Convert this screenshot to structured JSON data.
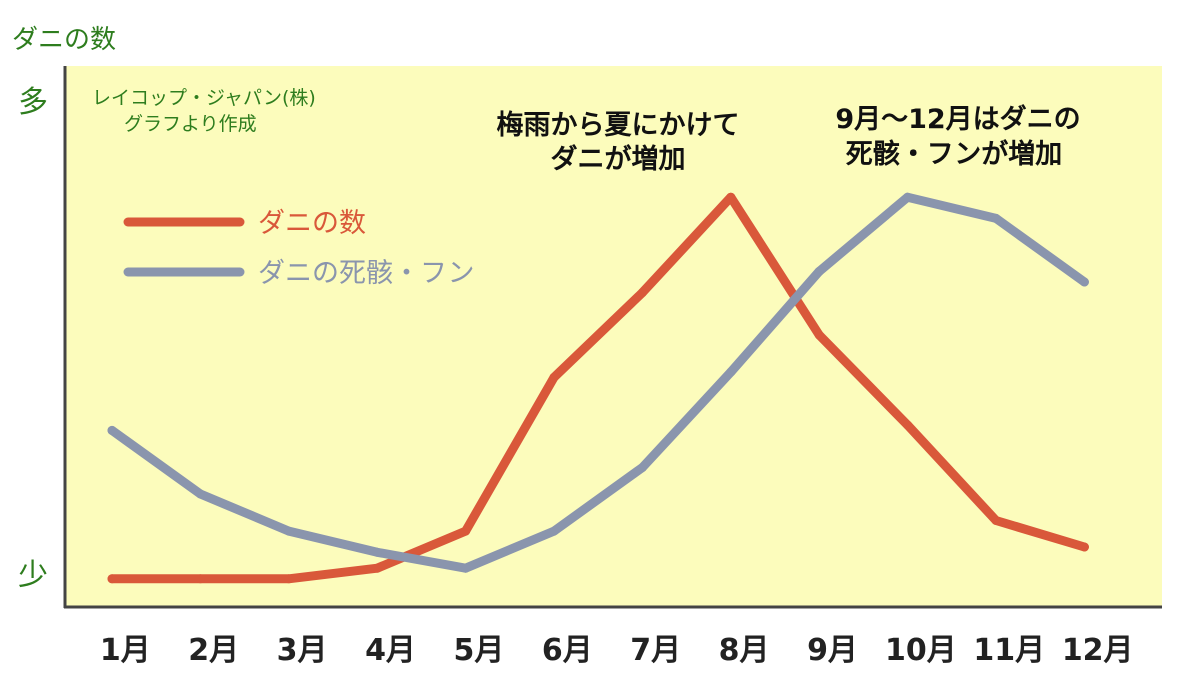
{
  "chart_data": {
    "type": "line",
    "ylabel": "ダニの数",
    "y_top_label": "多",
    "y_bottom_label": "少",
    "source_lines": [
      "レイコップ・ジャパン(株)",
      "グラフより作成"
    ],
    "annotations": [
      [
        "梅雨から夏にかけて",
        "ダニが増加"
      ],
      [
        "9月～12月はダニの",
        "死骸・フンが増加"
      ]
    ],
    "categories": [
      "1月",
      "2月",
      "3月",
      "4月",
      "5月",
      "6月",
      "7月",
      "8月",
      "9月",
      "10月",
      "11月",
      "12月"
    ],
    "ylim": [
      0,
      100
    ],
    "grid": false,
    "legend_position": "top-left",
    "series": [
      {
        "name": "ダニの数",
        "color": "#d9583a",
        "values": [
          4,
          4,
          4,
          6,
          13,
          42,
          58,
          76,
          50,
          33,
          15,
          10
        ]
      },
      {
        "name": "ダニの死骸・フン",
        "color": "#8a95ad",
        "values": [
          32,
          20,
          13,
          9,
          6,
          13,
          25,
          43,
          62,
          76,
          72,
          60
        ]
      }
    ],
    "colors": {
      "plot_background": "#fcfcbc",
      "axis": "#444444",
      "axis_text": "#2e7d1e"
    }
  }
}
